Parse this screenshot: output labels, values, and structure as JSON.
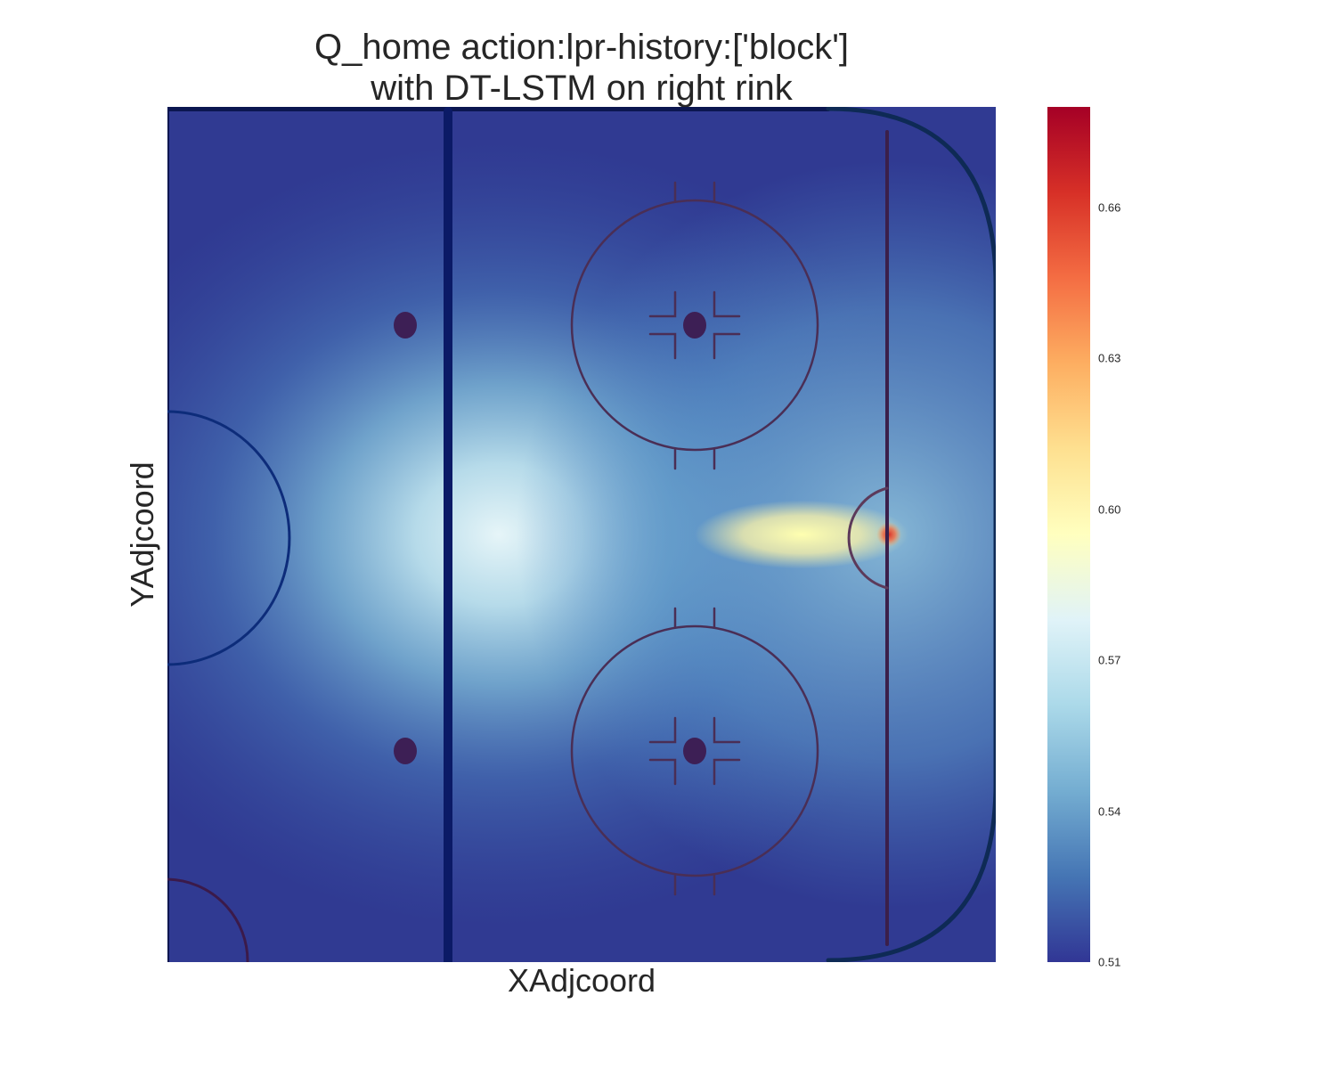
{
  "chart_data": {
    "type": "heatmap",
    "title_line1": "Q_home action:lpr-history:['block']",
    "title_line2": "with DT-LSTM on right rink",
    "xlabel": "XAdjcoord",
    "ylabel": "YAdjcoord",
    "colormap": "RdYlBu_r",
    "value_range": [
      0.51,
      0.68
    ],
    "colorbar_ticks": [
      0.51,
      0.54,
      0.57,
      0.6,
      0.63,
      0.66
    ],
    "colorbar_tick_labels": [
      "0.51",
      "0.54",
      "0.57",
      "0.60",
      "0.63",
      "0.66"
    ],
    "field": {
      "description_value_min": 0.51,
      "peak_value": 0.68,
      "peak_location": "goal crease, right rink",
      "edge_value_left": 0.51,
      "edge_value_right": 0.535
    }
  }
}
